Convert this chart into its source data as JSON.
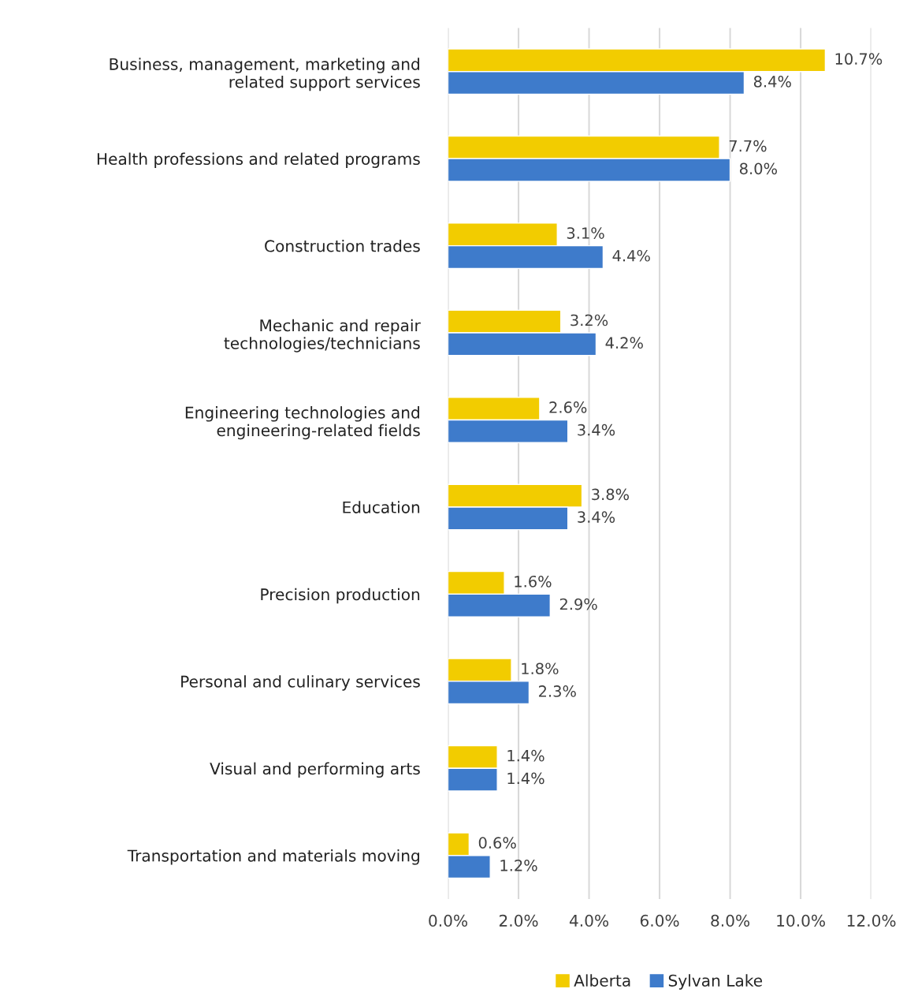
{
  "chart_data": {
    "type": "bar",
    "orientation": "horizontal",
    "categories": [
      "Business, management, marketing and\nrelated support services",
      "Health professions and related programs",
      "Construction trades",
      "Mechanic and repair\ntechnologies/technicians",
      "Engineering technologies and\nengineering-related fields",
      "Education",
      "Precision production",
      "Personal and culinary services",
      "Visual and performing arts",
      "Transportation and materials moving"
    ],
    "series": [
      {
        "name": "Alberta",
        "color": "#f2cc00",
        "values": [
          10.7,
          7.7,
          3.1,
          3.2,
          2.6,
          3.8,
          1.6,
          1.8,
          1.4,
          0.6
        ],
        "value_labels": [
          "10.7%",
          "7.7%",
          "3.1%",
          "3.2%",
          "2.6%",
          "3.8%",
          "1.6%",
          "1.8%",
          "1.4%",
          "0.6%"
        ]
      },
      {
        "name": "Sylvan Lake",
        "color": "#3e7bcb",
        "values": [
          8.4,
          8.0,
          4.4,
          4.2,
          3.4,
          3.4,
          2.9,
          2.3,
          1.4,
          1.2
        ],
        "value_labels": [
          "8.4%",
          "8.0%",
          "4.4%",
          "4.2%",
          "3.4%",
          "3.4%",
          "2.9%",
          "2.3%",
          "1.4%",
          "1.2%"
        ]
      }
    ],
    "xlim": [
      0,
      12
    ],
    "xticks": [
      {
        "value": 0,
        "label": "0.0%"
      },
      {
        "value": 2,
        "label": "2.0%"
      },
      {
        "value": 4,
        "label": "4.0%"
      },
      {
        "value": 6,
        "label": "6.0%"
      },
      {
        "value": 8,
        "label": "8.0%"
      },
      {
        "value": 10,
        "label": "10.0%"
      },
      {
        "value": 12,
        "label": "12.0%"
      }
    ],
    "grid": "x",
    "legend": "bottom"
  }
}
